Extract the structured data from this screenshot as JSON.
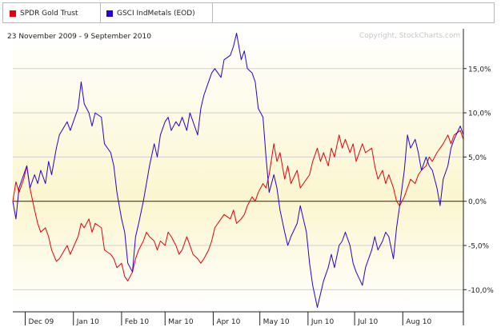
{
  "legend": [
    {
      "label": "SPDR Gold Trust",
      "color": "#e8000b"
    },
    {
      "label": "GSCI IndMetals (EOD)",
      "color": "#2a00cc"
    }
  ],
  "chart_data": {
    "type": "line",
    "title": "",
    "subtitle": "23 November 2009 - 9 September 2010",
    "copyright": "Copyright, StockCharts.com",
    "x_start": "2009-11-23",
    "x_end": "2010-09-09",
    "ylim": [
      -12.5,
      19.5
    ],
    "y_ticks": [
      {
        "value": 15,
        "label": "15,0%"
      },
      {
        "value": 10,
        "label": "10,0%"
      },
      {
        "value": 5,
        "label": "5,0%"
      },
      {
        "value": 0,
        "label": "0,0%"
      },
      {
        "value": -5,
        "label": "-5,0%"
      },
      {
        "value": -10,
        "label": "-10,0%"
      }
    ],
    "x_ticks": [
      {
        "label": "Dec 09",
        "date": "2009-12-01"
      },
      {
        "label": "Jan 10",
        "date": "2010-01-01"
      },
      {
        "label": "Feb 10",
        "date": "2010-02-01"
      },
      {
        "label": "Mar 10",
        "date": "2010-03-01"
      },
      {
        "label": "Apr 10",
        "date": "2010-04-01"
      },
      {
        "label": "May 10",
        "date": "2010-05-01"
      },
      {
        "label": "Jun 10",
        "date": "2010-06-01"
      },
      {
        "label": "Jul 10",
        "date": "2010-07-01"
      },
      {
        "label": "Aug 10",
        "date": "2010-08-01"
      }
    ],
    "grid": true,
    "series": [
      {
        "name": "SPDR Gold Trust",
        "color": "#e8000b",
        "points": [
          [
            "2009-11-23",
            0.0
          ],
          [
            "2009-11-25",
            2.2
          ],
          [
            "2009-11-27",
            1.0
          ],
          [
            "2009-11-30",
            2.5
          ],
          [
            "2009-12-02",
            4.0
          ],
          [
            "2009-12-04",
            1.5
          ],
          [
            "2009-12-07",
            -1.0
          ],
          [
            "2009-12-09",
            -2.5
          ],
          [
            "2009-12-11",
            -3.5
          ],
          [
            "2009-12-14",
            -3.0
          ],
          [
            "2009-12-16",
            -4.0
          ],
          [
            "2009-12-18",
            -5.5
          ],
          [
            "2009-12-21",
            -6.8
          ],
          [
            "2009-12-23",
            -6.5
          ],
          [
            "2009-12-28",
            -5.0
          ],
          [
            "2009-12-30",
            -6.0
          ],
          [
            "2010-01-04",
            -4.0
          ],
          [
            "2010-01-06",
            -2.5
          ],
          [
            "2010-01-08",
            -3.0
          ],
          [
            "2010-01-11",
            -2.0
          ],
          [
            "2010-01-13",
            -3.5
          ],
          [
            "2010-01-15",
            -2.5
          ],
          [
            "2010-01-19",
            -3.0
          ],
          [
            "2010-01-21",
            -5.5
          ],
          [
            "2010-01-25",
            -6.0
          ],
          [
            "2010-01-27",
            -6.5
          ],
          [
            "2010-01-29",
            -7.5
          ],
          [
            "2010-02-01",
            -7.0
          ],
          [
            "2010-02-03",
            -8.5
          ],
          [
            "2010-02-05",
            -9.0
          ],
          [
            "2010-02-08",
            -8.0
          ],
          [
            "2010-02-10",
            -6.5
          ],
          [
            "2010-02-12",
            -5.5
          ],
          [
            "2010-02-15",
            -4.5
          ],
          [
            "2010-02-17",
            -3.5
          ],
          [
            "2010-02-19",
            -4.0
          ],
          [
            "2010-02-22",
            -4.5
          ],
          [
            "2010-02-24",
            -5.5
          ],
          [
            "2010-02-26",
            -4.5
          ],
          [
            "2010-03-01",
            -5.0
          ],
          [
            "2010-03-03",
            -3.5
          ],
          [
            "2010-03-05",
            -4.0
          ],
          [
            "2010-03-08",
            -5.0
          ],
          [
            "2010-03-10",
            -6.0
          ],
          [
            "2010-03-12",
            -5.5
          ],
          [
            "2010-03-15",
            -4.0
          ],
          [
            "2010-03-17",
            -5.0
          ],
          [
            "2010-03-19",
            -6.0
          ],
          [
            "2010-03-22",
            -6.5
          ],
          [
            "2010-03-24",
            -7.0
          ],
          [
            "2010-03-26",
            -6.5
          ],
          [
            "2010-03-29",
            -5.5
          ],
          [
            "2010-03-31",
            -4.5
          ],
          [
            "2010-04-02",
            -3.0
          ],
          [
            "2010-04-06",
            -2.0
          ],
          [
            "2010-04-08",
            -1.5
          ],
          [
            "2010-04-12",
            -2.0
          ],
          [
            "2010-04-14",
            -1.0
          ],
          [
            "2010-04-16",
            -2.5
          ],
          [
            "2010-04-19",
            -2.0
          ],
          [
            "2010-04-21",
            -1.5
          ],
          [
            "2010-04-23",
            -0.5
          ],
          [
            "2010-04-26",
            0.5
          ],
          [
            "2010-04-28",
            0.0
          ],
          [
            "2010-04-30",
            1.0
          ],
          [
            "2010-05-03",
            2.0
          ],
          [
            "2010-05-05",
            1.5
          ],
          [
            "2010-05-07",
            3.0
          ],
          [
            "2010-05-10",
            6.5
          ],
          [
            "2010-05-12",
            4.5
          ],
          [
            "2010-05-14",
            5.5
          ],
          [
            "2010-05-17",
            2.5
          ],
          [
            "2010-05-19",
            4.0
          ],
          [
            "2010-05-21",
            2.0
          ],
          [
            "2010-05-25",
            3.5
          ],
          [
            "2010-05-27",
            1.5
          ],
          [
            "2010-05-31",
            2.5
          ],
          [
            "2010-06-02",
            3.0
          ],
          [
            "2010-06-04",
            4.5
          ],
          [
            "2010-06-07",
            6.0
          ],
          [
            "2010-06-09",
            4.5
          ],
          [
            "2010-06-11",
            5.5
          ],
          [
            "2010-06-14",
            4.0
          ],
          [
            "2010-06-16",
            6.0
          ],
          [
            "2010-06-18",
            5.0
          ],
          [
            "2010-06-21",
            7.5
          ],
          [
            "2010-06-23",
            6.0
          ],
          [
            "2010-06-25",
            7.0
          ],
          [
            "2010-06-28",
            5.5
          ],
          [
            "2010-06-30",
            6.5
          ],
          [
            "2010-07-02",
            4.5
          ],
          [
            "2010-07-06",
            6.5
          ],
          [
            "2010-07-08",
            5.5
          ],
          [
            "2010-07-12",
            6.0
          ],
          [
            "2010-07-14",
            4.0
          ],
          [
            "2010-07-16",
            2.5
          ],
          [
            "2010-07-19",
            3.5
          ],
          [
            "2010-07-21",
            2.0
          ],
          [
            "2010-07-23",
            3.0
          ],
          [
            "2010-07-26",
            1.5
          ],
          [
            "2010-07-28",
            0.0
          ],
          [
            "2010-07-30",
            -0.5
          ],
          [
            "2010-08-02",
            0.5
          ],
          [
            "2010-08-04",
            1.5
          ],
          [
            "2010-08-06",
            2.5
          ],
          [
            "2010-08-09",
            2.0
          ],
          [
            "2010-08-11",
            3.0
          ],
          [
            "2010-08-13",
            3.5
          ],
          [
            "2010-08-16",
            4.0
          ],
          [
            "2010-08-18",
            5.0
          ],
          [
            "2010-08-20",
            4.5
          ],
          [
            "2010-08-23",
            5.5
          ],
          [
            "2010-08-25",
            6.0
          ],
          [
            "2010-08-27",
            6.5
          ],
          [
            "2010-08-30",
            7.5
          ],
          [
            "2010-09-01",
            6.5
          ],
          [
            "2010-09-03",
            7.5
          ],
          [
            "2010-09-07",
            8.0
          ],
          [
            "2010-09-09",
            7.0
          ]
        ]
      },
      {
        "name": "GSCI IndMetals (EOD)",
        "color": "#2a00cc",
        "points": [
          [
            "2009-11-23",
            0.0
          ],
          [
            "2009-11-25",
            -2.0
          ],
          [
            "2009-11-27",
            1.5
          ],
          [
            "2009-11-30",
            3.0
          ],
          [
            "2009-12-02",
            4.0
          ],
          [
            "2009-12-04",
            1.5
          ],
          [
            "2009-12-07",
            3.0
          ],
          [
            "2009-12-09",
            2.0
          ],
          [
            "2009-12-11",
            3.5
          ],
          [
            "2009-12-14",
            2.0
          ],
          [
            "2009-12-16",
            4.5
          ],
          [
            "2009-12-18",
            3.0
          ],
          [
            "2009-12-21",
            6.0
          ],
          [
            "2009-12-23",
            7.5
          ],
          [
            "2009-12-28",
            9.0
          ],
          [
            "2009-12-30",
            8.0
          ],
          [
            "2010-01-04",
            10.5
          ],
          [
            "2010-01-06",
            13.5
          ],
          [
            "2010-01-08",
            11.0
          ],
          [
            "2010-01-11",
            10.0
          ],
          [
            "2010-01-13",
            8.5
          ],
          [
            "2010-01-15",
            10.0
          ],
          [
            "2010-01-19",
            9.5
          ],
          [
            "2010-01-21",
            6.5
          ],
          [
            "2010-01-25",
            5.5
          ],
          [
            "2010-01-27",
            4.0
          ],
          [
            "2010-01-29",
            1.0
          ],
          [
            "2010-02-01",
            -2.0
          ],
          [
            "2010-02-03",
            -3.5
          ],
          [
            "2010-02-05",
            -7.0
          ],
          [
            "2010-02-08",
            -8.0
          ],
          [
            "2010-02-10",
            -4.0
          ],
          [
            "2010-02-12",
            -2.5
          ],
          [
            "2010-02-15",
            0.0
          ],
          [
            "2010-02-17",
            2.0
          ],
          [
            "2010-02-19",
            4.0
          ],
          [
            "2010-02-22",
            6.5
          ],
          [
            "2010-02-24",
            5.0
          ],
          [
            "2010-02-26",
            7.5
          ],
          [
            "2010-03-01",
            9.0
          ],
          [
            "2010-03-03",
            9.5
          ],
          [
            "2010-03-05",
            8.0
          ],
          [
            "2010-03-08",
            9.0
          ],
          [
            "2010-03-10",
            8.5
          ],
          [
            "2010-03-12",
            9.5
          ],
          [
            "2010-03-15",
            8.0
          ],
          [
            "2010-03-17",
            10.0
          ],
          [
            "2010-03-19",
            9.0
          ],
          [
            "2010-03-22",
            7.5
          ],
          [
            "2010-03-24",
            10.5
          ],
          [
            "2010-03-26",
            12.0
          ],
          [
            "2010-03-29",
            13.5
          ],
          [
            "2010-03-31",
            14.5
          ],
          [
            "2010-04-02",
            15.0
          ],
          [
            "2010-04-06",
            14.0
          ],
          [
            "2010-04-08",
            16.0
          ],
          [
            "2010-04-12",
            16.5
          ],
          [
            "2010-04-14",
            17.5
          ],
          [
            "2010-04-16",
            19.0
          ],
          [
            "2010-04-19",
            16.0
          ],
          [
            "2010-04-21",
            17.0
          ],
          [
            "2010-04-23",
            15.0
          ],
          [
            "2010-04-26",
            14.5
          ],
          [
            "2010-04-28",
            13.5
          ],
          [
            "2010-04-30",
            10.5
          ],
          [
            "2010-05-03",
            9.5
          ],
          [
            "2010-05-05",
            5.0
          ],
          [
            "2010-05-07",
            1.0
          ],
          [
            "2010-05-10",
            3.0
          ],
          [
            "2010-05-12",
            1.5
          ],
          [
            "2010-05-14",
            -1.0
          ],
          [
            "2010-05-17",
            -3.5
          ],
          [
            "2010-05-19",
            -5.0
          ],
          [
            "2010-05-21",
            -4.0
          ],
          [
            "2010-05-25",
            -2.5
          ],
          [
            "2010-05-27",
            -0.5
          ],
          [
            "2010-05-31",
            -3.5
          ],
          [
            "2010-06-02",
            -7.0
          ],
          [
            "2010-06-04",
            -9.5
          ],
          [
            "2010-06-07",
            -12.0
          ],
          [
            "2010-06-09",
            -10.5
          ],
          [
            "2010-06-11",
            -9.0
          ],
          [
            "2010-06-14",
            -7.5
          ],
          [
            "2010-06-16",
            -6.0
          ],
          [
            "2010-06-18",
            -7.5
          ],
          [
            "2010-06-21",
            -5.0
          ],
          [
            "2010-06-23",
            -4.5
          ],
          [
            "2010-06-25",
            -3.5
          ],
          [
            "2010-06-28",
            -5.0
          ],
          [
            "2010-06-30",
            -7.0
          ],
          [
            "2010-07-02",
            -8.0
          ],
          [
            "2010-07-06",
            -9.5
          ],
          [
            "2010-07-08",
            -7.5
          ],
          [
            "2010-07-12",
            -5.5
          ],
          [
            "2010-07-14",
            -4.0
          ],
          [
            "2010-07-16",
            -5.5
          ],
          [
            "2010-07-19",
            -4.5
          ],
          [
            "2010-07-21",
            -3.5
          ],
          [
            "2010-07-23",
            -4.0
          ],
          [
            "2010-07-26",
            -6.5
          ],
          [
            "2010-07-28",
            -3.0
          ],
          [
            "2010-07-30",
            -0.5
          ],
          [
            "2010-08-02",
            3.5
          ],
          [
            "2010-08-04",
            7.5
          ],
          [
            "2010-08-06",
            6.0
          ],
          [
            "2010-08-09",
            7.0
          ],
          [
            "2010-08-11",
            5.5
          ],
          [
            "2010-08-13",
            3.5
          ],
          [
            "2010-08-16",
            5.0
          ],
          [
            "2010-08-18",
            4.0
          ],
          [
            "2010-08-20",
            3.5
          ],
          [
            "2010-08-23",
            1.5
          ],
          [
            "2010-08-25",
            -0.5
          ],
          [
            "2010-08-27",
            2.5
          ],
          [
            "2010-08-30",
            4.0
          ],
          [
            "2010-09-01",
            6.0
          ],
          [
            "2010-09-03",
            7.0
          ],
          [
            "2010-09-07",
            8.5
          ],
          [
            "2010-09-09",
            7.5
          ]
        ]
      }
    ]
  }
}
